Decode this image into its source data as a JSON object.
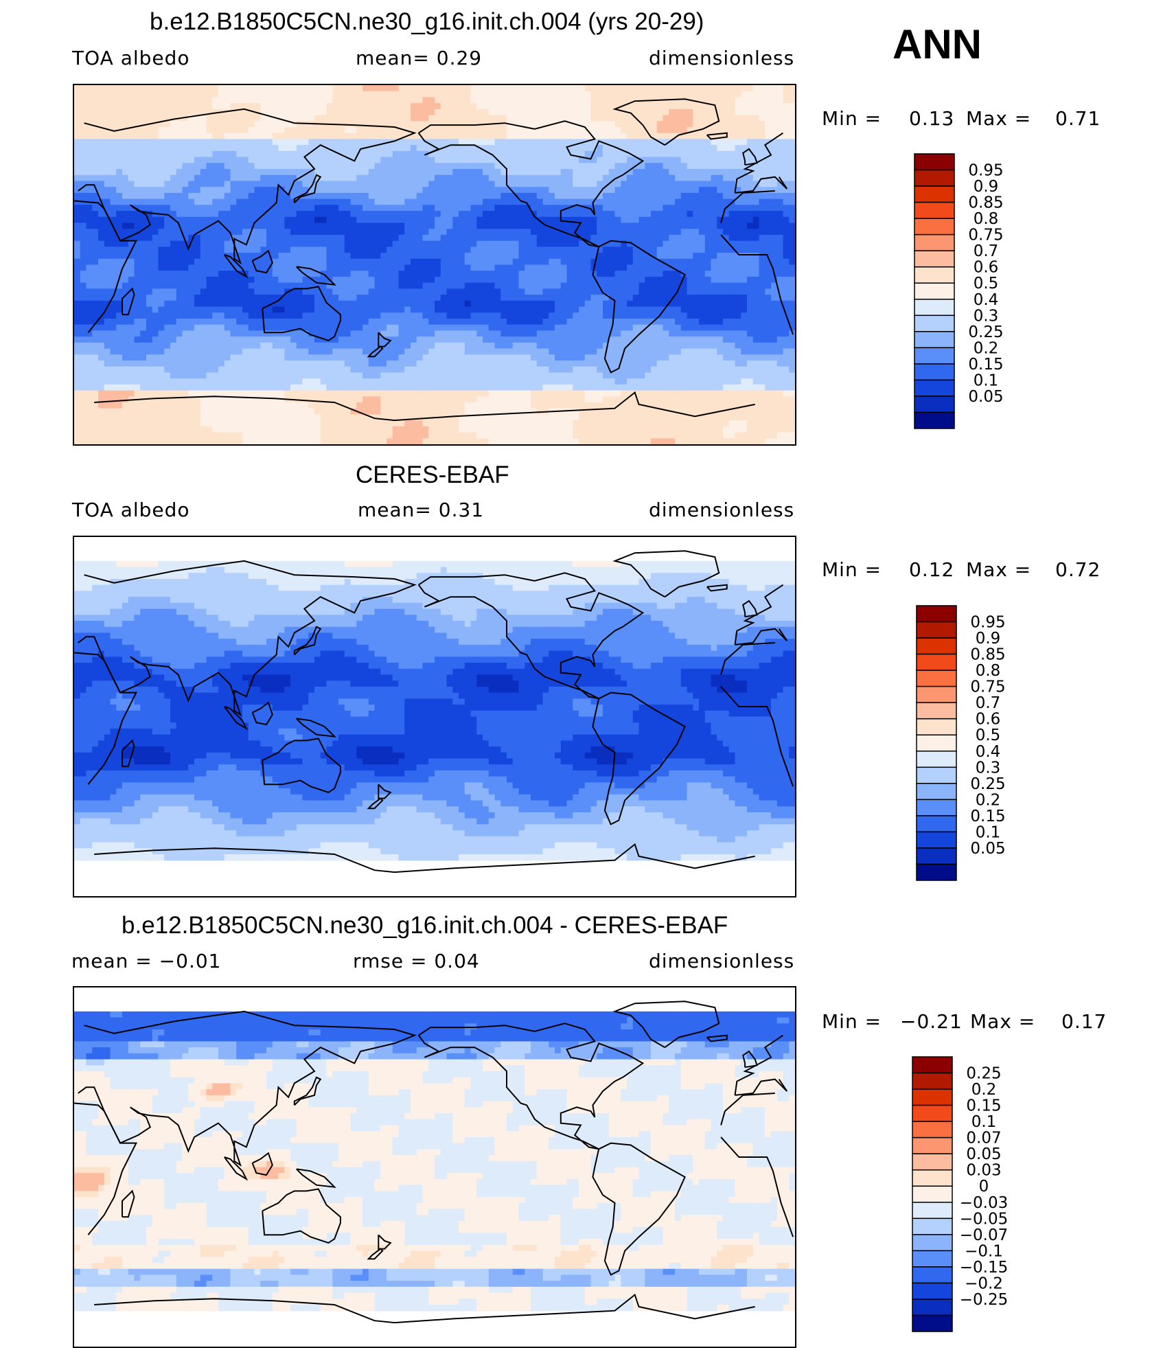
{
  "season": "ANN",
  "panels": [
    {
      "id": "model",
      "title": "b.e12.B1850C5CN.ne30_g16.init.ch.004 (yrs 20-29)",
      "left_label": "TOA  albedo",
      "mid_label": "mean=     0.29",
      "right_label": "dimensionless",
      "min_label": "Min  =",
      "min_value": "0.13",
      "max_label": "Max  =",
      "max_value": "0.71"
    },
    {
      "id": "obs",
      "title": "CERES-EBAF",
      "left_label": "TOA  albedo",
      "mid_label": "mean=     0.31",
      "right_label": "dimensionless",
      "min_label": "Min  =",
      "min_value": "0.12",
      "max_label": "Max  =",
      "max_value": "0.72"
    },
    {
      "id": "diff",
      "title": "b.e12.B1850C5CN.ne30_g16.init.ch.004 - CERES-EBAF",
      "left_label": "mean  =    −0.01",
      "mid_label": "rmse  =     0.04",
      "right_label": "dimensionless",
      "min_label": "Min  =",
      "min_value": "−0.21",
      "max_label": "Max  =",
      "max_value": "0.17"
    }
  ],
  "chart_data": [
    {
      "type": "heatmap",
      "title": "b.e12.B1850C5CN.ne30_g16.init.ch.004 (yrs 20-29)",
      "variable": "TOA  albedo",
      "units": "dimensionless",
      "mean": 0.29,
      "min": 0.13,
      "max": 0.71,
      "colorbar": {
        "levels": [
          "0.95",
          "0.9",
          "0.85",
          "0.8",
          "0.75",
          "0.7",
          "0.6",
          "0.5",
          "0.4",
          "0.3",
          "0.25",
          "0.2",
          "0.15",
          "0.1",
          "0.05"
        ],
        "colors": [
          "#8b0000",
          "#b21a00",
          "#dc3200",
          "#f24a1a",
          "#fa7040",
          "#fb9670",
          "#fcbca0",
          "#fde2cc",
          "#fdf0e6",
          "#deebfa",
          "#b4d0fc",
          "#8cb4fa",
          "#5a8ef8",
          "#3068f0",
          "#1446de",
          "#0a2ec0",
          "#000d8a"
        ]
      }
    },
    {
      "type": "heatmap",
      "title": "CERES-EBAF",
      "variable": "TOA  albedo",
      "units": "dimensionless",
      "mean": 0.31,
      "min": 0.12,
      "max": 0.72,
      "colorbar": {
        "levels": [
          "0.95",
          "0.9",
          "0.85",
          "0.8",
          "0.75",
          "0.7",
          "0.6",
          "0.5",
          "0.4",
          "0.3",
          "0.25",
          "0.2",
          "0.15",
          "0.1",
          "0.05"
        ],
        "colors": [
          "#8b0000",
          "#b21a00",
          "#dc3200",
          "#f24a1a",
          "#fa7040",
          "#fb9670",
          "#fcbca0",
          "#fde2cc",
          "#fdf0e6",
          "#deebfa",
          "#b4d0fc",
          "#8cb4fa",
          "#5a8ef8",
          "#3068f0",
          "#1446de",
          "#0a2ec0",
          "#000d8a"
        ]
      }
    },
    {
      "type": "heatmap",
      "title": "b.e12.B1850C5CN.ne30_g16.init.ch.004 - CERES-EBAF",
      "units": "dimensionless",
      "mean": -0.01,
      "rmse": 0.04,
      "min": -0.21,
      "max": 0.17,
      "colorbar": {
        "levels": [
          "0.25",
          "0.2",
          "0.15",
          "0.1",
          "0.07",
          "0.05",
          "0.03",
          "0",
          "−0.03",
          "−0.05",
          "−0.07",
          "−0.1",
          "−0.15",
          "−0.2",
          "−0.25"
        ],
        "colors": [
          "#8b0000",
          "#b21a00",
          "#dc3200",
          "#f24a1a",
          "#fa7040",
          "#fb9670",
          "#fcbca0",
          "#fde2cc",
          "#fdf0e6",
          "#deebfa",
          "#b4d0fc",
          "#8cb4fa",
          "#5a8ef8",
          "#3068f0",
          "#1446de",
          "#0a2ec0",
          "#000d8a"
        ]
      }
    }
  ]
}
